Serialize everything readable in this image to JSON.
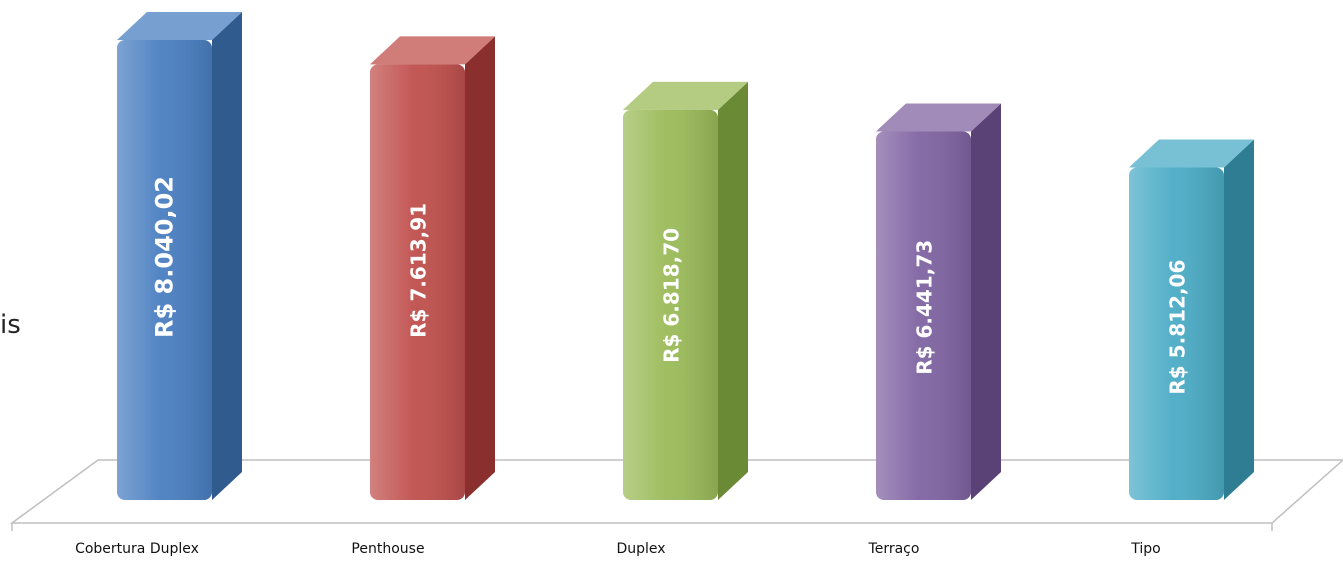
{
  "left_text_fragment": "is",
  "chart_data": {
    "type": "bar",
    "categories": [
      "Cobertura Duplex",
      "Penthouse",
      "Duplex",
      "Terraço",
      "Tipo"
    ],
    "values": [
      8040.02,
      7613.91,
      6818.7,
      6441.73,
      5812.06
    ],
    "data_labels": [
      "R$ 8.040,02",
      "R$ 7.613,91",
      "R$ 6.818,70",
      "R$ 6.441,73",
      "R$ 5.812,06"
    ],
    "colors": [
      "#4a7fc1",
      "#c0504d",
      "#9bbb59",
      "#8064a2",
      "#4bacc6"
    ],
    "side_colors": [
      "#2f5b8f",
      "#8a2f2d",
      "#6a8a35",
      "#5b4276",
      "#2f7d93"
    ],
    "title": "",
    "xlabel": "",
    "ylabel": "",
    "ylim": [
      0,
      8040.02
    ],
    "grid": false,
    "legend": "none",
    "style": "3d-column"
  }
}
